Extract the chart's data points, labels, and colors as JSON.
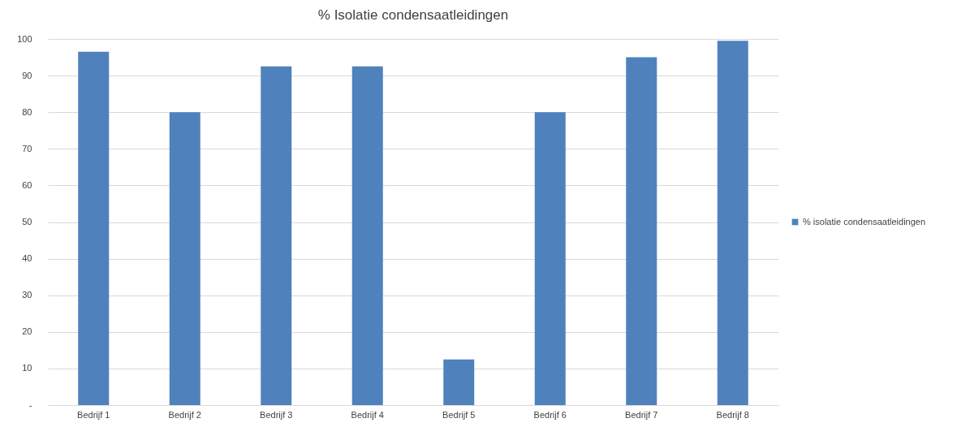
{
  "chart_data": {
    "type": "bar",
    "title": "% Isolatie condensaatleidingen",
    "categories": [
      "Bedrijf 1",
      "Bedrijf 2",
      "Bedrijf 3",
      "Bedrijf 4",
      "Bedrijf 5",
      "Bedrijf 6",
      "Bedrijf 7",
      "Bedrijf 8"
    ],
    "series": [
      {
        "name": "% isolatie condensaatleidingen",
        "color": "#4f81bd",
        "values": [
          96.5,
          80,
          92.5,
          92.5,
          12.5,
          80,
          95,
          99.5
        ]
      }
    ],
    "ylim": [
      0,
      100
    ],
    "yticks": [
      {
        "value": 0,
        "label": "-"
      },
      10,
      20,
      30,
      40,
      50,
      60,
      70,
      80,
      90,
      100
    ],
    "grid": "y",
    "legend": "right"
  }
}
